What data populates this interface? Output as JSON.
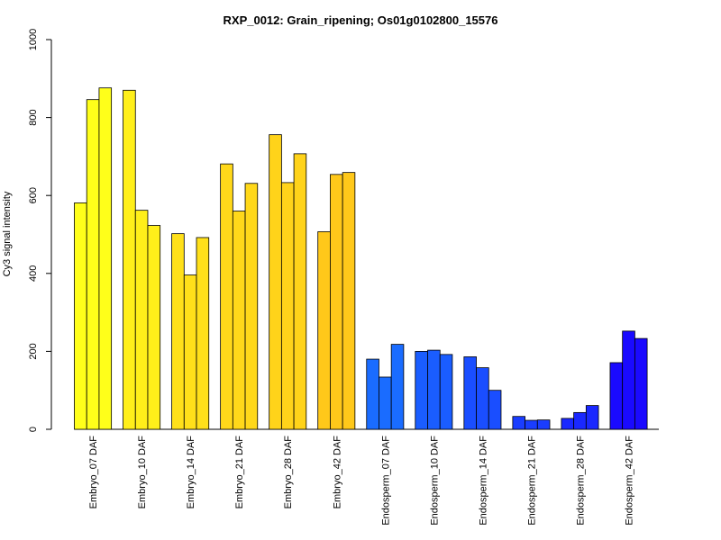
{
  "chart_data": {
    "type": "bar",
    "title": "RXP_0012: Grain_ripening; Os01g0102800_15576",
    "xlabel": "",
    "ylabel": "Cy3 signal intensity",
    "ylim": [
      0,
      1000
    ],
    "yticks": [
      0,
      200,
      400,
      600,
      800,
      1000
    ],
    "grid": false,
    "legend": "none",
    "categories": [
      "Embryo_07 DAF",
      "Embryo_10 DAF",
      "Embryo_14 DAF",
      "Embryo_21 DAF",
      "Embryo_28 DAF",
      "Embryo_42 DAF",
      "Endosperm_07 DAF",
      "Endosperm_10 DAF",
      "Endosperm_14 DAF",
      "Endosperm_21 DAF",
      "Endosperm_28 DAF",
      "Endosperm_42 DAF"
    ],
    "colors": [
      "#ffff1a",
      "#ffef1a",
      "#ffe01a",
      "#ffd81a",
      "#ffd31a",
      "#ffc81a",
      "#1a6cff",
      "#1a5dff",
      "#1a4eff",
      "#1a3dff",
      "#1a28ff",
      "#1a0aff"
    ],
    "values": [
      [
        581,
        846,
        876
      ],
      [
        870,
        562,
        523
      ],
      [
        502,
        396,
        492
      ],
      [
        681,
        560,
        631
      ],
      [
        756,
        633,
        707
      ],
      [
        507,
        654,
        659
      ],
      [
        180,
        134,
        218
      ],
      [
        200,
        203,
        192
      ],
      [
        186,
        158,
        100
      ],
      [
        33,
        23,
        24
      ],
      [
        28,
        43,
        61
      ],
      [
        171,
        252,
        233
      ]
    ]
  }
}
